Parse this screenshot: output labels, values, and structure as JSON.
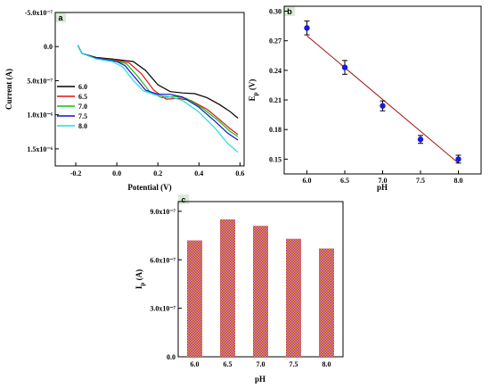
{
  "panels": {
    "a": {
      "label": "a"
    },
    "b": {
      "label": "b"
    },
    "c": {
      "label": "c"
    }
  },
  "colors": {
    "panel_label_bg": "#d9ecd6",
    "fit_line": "#a01010",
    "points": "#1a1adc",
    "bar_stripe_a": "#e8a33c",
    "bar_stripe_b": "#b03090"
  },
  "chart_data": [
    {
      "panel": "a",
      "type": "line",
      "xlabel": "Potential (V)",
      "ylabel": "Current (A)",
      "xlim": [
        -0.3,
        0.62
      ],
      "ylim_reversed": [
        1.75e-06,
        -5e-07
      ],
      "x_ticks": [
        "-0.2",
        "0.0",
        "0.2",
        "0.4",
        "0.6"
      ],
      "x_tick_values": [
        -0.2,
        0.0,
        0.2,
        0.4,
        0.6
      ],
      "y_ticks": [
        "-5.0x10⁻⁷",
        "0.0",
        "5.0x10⁻⁷",
        "1.0x10⁻⁶",
        "1.5x10⁻⁶"
      ],
      "y_tick_values": [
        -5e-07,
        0.0,
        5e-07,
        1e-06,
        1.5e-06
      ],
      "legend": [
        "6.0",
        "6.5",
        "7.0",
        "7.5",
        "8.0"
      ],
      "series": [
        {
          "name": "6.0",
          "color": "#000000",
          "x": [
            -0.19,
            -0.17,
            -0.1,
            0.0,
            0.08,
            0.14,
            0.2,
            0.26,
            0.32,
            0.38,
            0.44,
            0.5,
            0.55,
            0.59
          ],
          "y": [
            -2e-08,
            1e-07,
            1.6e-07,
            1.9e-07,
            2.2e-07,
            3.5e-07,
            5.6e-07,
            6.6e-07,
            6.8e-07,
            6.9e-07,
            7.5e-07,
            8.5e-07,
            9.5e-07,
            1.05e-06
          ]
        },
        {
          "name": "6.5",
          "color": "#e01010",
          "x": [
            -0.19,
            -0.17,
            -0.1,
            0.0,
            0.06,
            0.12,
            0.18,
            0.24,
            0.3,
            0.36,
            0.44,
            0.5,
            0.55,
            0.59
          ],
          "y": [
            -2e-08,
            1e-07,
            1.7e-07,
            2e-07,
            2.4e-07,
            4e-07,
            6.4e-07,
            7.7e-07,
            7.6e-07,
            7.9e-07,
            9.2e-07,
            1.07e-06,
            1.2e-06,
            1.29e-06
          ]
        },
        {
          "name": "7.0",
          "color": "#10c010",
          "x": [
            -0.19,
            -0.17,
            -0.1,
            0.0,
            0.05,
            0.1,
            0.16,
            0.22,
            0.28,
            0.34,
            0.42,
            0.5,
            0.55,
            0.59
          ],
          "y": [
            -2e-08,
            1e-07,
            1.7e-07,
            2.1e-07,
            2.6e-07,
            4.3e-07,
            6.6e-07,
            7.5e-07,
            7.3e-07,
            7.6e-07,
            9.1e-07,
            1.1e-06,
            1.24e-06,
            1.32e-06
          ]
        },
        {
          "name": "7.5",
          "color": "#1010d0",
          "x": [
            -0.19,
            -0.17,
            -0.1,
            0.0,
            0.04,
            0.09,
            0.14,
            0.2,
            0.26,
            0.32,
            0.4,
            0.48,
            0.54,
            0.59
          ],
          "y": [
            -2e-08,
            1e-07,
            1.7e-07,
            2.2e-07,
            2.8e-07,
            4.6e-07,
            6.4e-07,
            7e-07,
            7e-07,
            7.4e-07,
            8.9e-07,
            1.1e-06,
            1.27e-06,
            1.37e-06
          ]
        },
        {
          "name": "8.0",
          "color": "#20d8e8",
          "x": [
            -0.19,
            -0.17,
            -0.1,
            -0.02,
            0.03,
            0.08,
            0.13,
            0.19,
            0.25,
            0.32,
            0.4,
            0.48,
            0.54,
            0.59
          ],
          "y": [
            -2e-08,
            1e-07,
            1.8e-07,
            2.2e-07,
            3e-07,
            5e-07,
            6.5e-07,
            7.1e-07,
            7.3e-07,
            7.9e-07,
            9.6e-07,
            1.2e-06,
            1.42e-06,
            1.55e-06
          ]
        }
      ]
    },
    {
      "panel": "b",
      "type": "scatter",
      "xlabel": "pH",
      "ylabel": "E",
      "ylabel_sub": "p",
      "ylabel_unit": " (V)",
      "xlim": [
        5.7,
        8.3
      ],
      "ylim": [
        0.135,
        0.305
      ],
      "x_ticks": [
        "6.0",
        "6.5",
        "7.0",
        "7.5",
        "8.0"
      ],
      "x_tick_values": [
        6.0,
        6.5,
        7.0,
        7.5,
        8.0
      ],
      "y_ticks": [
        "0.15",
        "0.18",
        "0.21",
        "0.24",
        "0.27",
        "0.30"
      ],
      "y_tick_values": [
        0.15,
        0.18,
        0.21,
        0.24,
        0.27,
        0.3
      ],
      "points": {
        "x": [
          6.0,
          6.5,
          7.0,
          7.5,
          8.0
        ],
        "y": [
          0.283,
          0.243,
          0.204,
          0.17,
          0.15
        ],
        "err": [
          0.007,
          0.007,
          0.005,
          0.004,
          0.004
        ]
      },
      "fit": {
        "x": [
          6.0,
          8.0
        ],
        "y": [
          0.275,
          0.146
        ]
      }
    },
    {
      "panel": "c",
      "type": "bar",
      "xlabel": "pH",
      "ylabel": "I",
      "ylabel_sub": "p",
      "ylabel_unit": " (A)",
      "categories": [
        "6.0",
        "6.5",
        "7.0",
        "7.5",
        "8.0"
      ],
      "values": [
        7.2e-07,
        8.5e-07,
        8.1e-07,
        7.3e-07,
        6.7e-07
      ],
      "ylim": [
        0,
        9.6e-07
      ],
      "y_ticks": [
        "0.0",
        "3.0x10⁻⁷",
        "6.0x10⁻⁷",
        "9.0x10⁻⁷"
      ],
      "y_tick_values": [
        0,
        3e-07,
        6e-07,
        9e-07
      ]
    }
  ]
}
